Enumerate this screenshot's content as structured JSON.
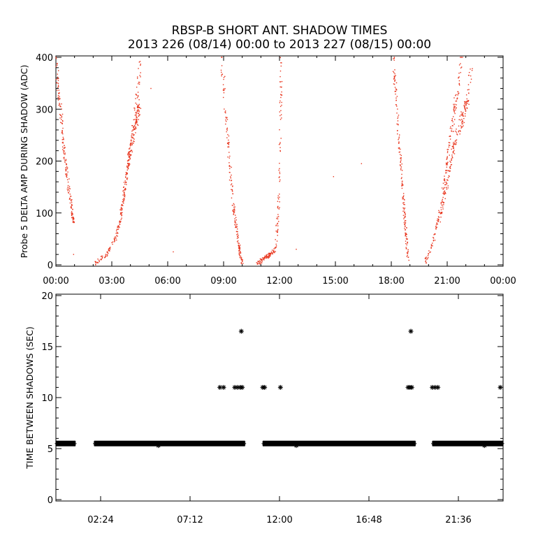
{
  "title_line1": "RBSP-B SHORT ANT. SHADOW TIMES",
  "title_line2": "2013 226 (08/14) 00:00 to 2013 227 (08/15) 00:00",
  "colors": {
    "points_top": "#e8341c",
    "points_bottom": "#000000",
    "axes": "#000000",
    "background": "#ffffff"
  },
  "chart_data": [
    {
      "type": "scatter",
      "title": "",
      "xlabel": "",
      "ylabel": "Probe 5 DELTA AMP DURING SHADOW (ADC)",
      "xlim_hours": [
        0,
        24
      ],
      "ylim": [
        0,
        400
      ],
      "x_ticks_hours": [
        0,
        3,
        6,
        9,
        12,
        15,
        18,
        21,
        24
      ],
      "x_tick_labels": [
        "00:00",
        "03:00",
        "06:00",
        "09:00",
        "12:00",
        "15:00",
        "18:00",
        "21:00",
        "00:00"
      ],
      "y_ticks": [
        0,
        100,
        200,
        300,
        400
      ],
      "y_tick_labels": [
        "0",
        "100",
        "200",
        "300",
        "400"
      ],
      "marker": "dot",
      "segments": [
        {
          "x_hours": [
            0.0,
            0.25,
            0.5,
            0.8,
            0.95
          ],
          "y": [
            390,
            300,
            200,
            120,
            80
          ]
        },
        {
          "x_hours": [
            2.1,
            2.7,
            3.2,
            3.5,
            3.8,
            4.2,
            4.6
          ],
          "y": [
            2,
            20,
            50,
            90,
            180,
            280,
            400
          ]
        },
        {
          "x_hours": [
            3.5,
            3.9,
            4.2,
            4.5
          ],
          "y": [
            100,
            200,
            260,
            310
          ]
        },
        {
          "x_hours": [
            8.9,
            9.2,
            9.5,
            9.8,
            10.0
          ],
          "y": [
            400,
            250,
            120,
            40,
            2
          ]
        },
        {
          "x_hours": [
            10.8,
            11.3,
            11.8,
            12.0,
            12.1
          ],
          "y": [
            2,
            15,
            30,
            150,
            380
          ]
        },
        {
          "x_hours": [
            18.1,
            18.4,
            18.7,
            18.9
          ],
          "y": [
            400,
            250,
            100,
            10
          ]
        },
        {
          "x_hours": [
            19.8,
            20.3,
            20.7,
            21.0,
            21.4,
            21.8
          ],
          "y": [
            2,
            50,
            120,
            200,
            300,
            400
          ]
        },
        {
          "x_hours": [
            20.6,
            21.0,
            21.5,
            22.0,
            22.3
          ],
          "y": [
            80,
            160,
            250,
            300,
            370
          ]
        }
      ],
      "isolated_points": [
        {
          "x_hours": 0.95,
          "y": 20
        },
        {
          "x_hours": 5.1,
          "y": 340
        },
        {
          "x_hours": 6.3,
          "y": 25
        },
        {
          "x_hours": 12.9,
          "y": 30
        },
        {
          "x_hours": 14.9,
          "y": 170
        },
        {
          "x_hours": 16.4,
          "y": 195
        }
      ]
    },
    {
      "type": "scatter",
      "title": "",
      "xlabel": "",
      "ylabel": "TIME BETWEEN SHADOWS (SEC)",
      "xlim_hours": [
        0,
        24
      ],
      "ylim": [
        0,
        20
      ],
      "x_ticks_hours": [
        2.4,
        7.2,
        12.0,
        16.8,
        21.6
      ],
      "x_tick_labels": [
        "02:24",
        "07:12",
        "12:00",
        "16:48",
        "21:36"
      ],
      "y_ticks": [
        0,
        5,
        10,
        15,
        20
      ],
      "y_tick_labels": [
        "0",
        "5",
        "10",
        "15",
        "20"
      ],
      "marker": "asterisk",
      "baseline_value": 5.5,
      "baseline_ranges_hours": [
        [
          0.0,
          1.05
        ],
        [
          2.05,
          10.15
        ],
        [
          11.1,
          19.3
        ],
        [
          20.2,
          24.0
        ]
      ],
      "points": [
        {
          "x_hours": 8.8,
          "y": 11.0
        },
        {
          "x_hours": 9.0,
          "y": 11.0
        },
        {
          "x_hours": 9.6,
          "y": 11.0
        },
        {
          "x_hours": 9.75,
          "y": 11.0
        },
        {
          "x_hours": 9.9,
          "y": 11.0
        },
        {
          "x_hours": 10.0,
          "y": 11.0
        },
        {
          "x_hours": 9.95,
          "y": 16.5
        },
        {
          "x_hours": 11.1,
          "y": 11.0
        },
        {
          "x_hours": 11.2,
          "y": 11.0
        },
        {
          "x_hours": 12.05,
          "y": 11.0
        },
        {
          "x_hours": 18.9,
          "y": 11.0
        },
        {
          "x_hours": 19.0,
          "y": 11.0
        },
        {
          "x_hours": 19.1,
          "y": 11.0
        },
        {
          "x_hours": 19.05,
          "y": 16.5
        },
        {
          "x_hours": 20.2,
          "y": 11.0
        },
        {
          "x_hours": 20.35,
          "y": 11.0
        },
        {
          "x_hours": 20.5,
          "y": 11.0
        },
        {
          "x_hours": 23.85,
          "y": 11.0
        },
        {
          "x_hours": 5.5,
          "y": 5.3
        },
        {
          "x_hours": 12.9,
          "y": 5.3
        },
        {
          "x_hours": 23.0,
          "y": 5.3
        }
      ]
    }
  ]
}
